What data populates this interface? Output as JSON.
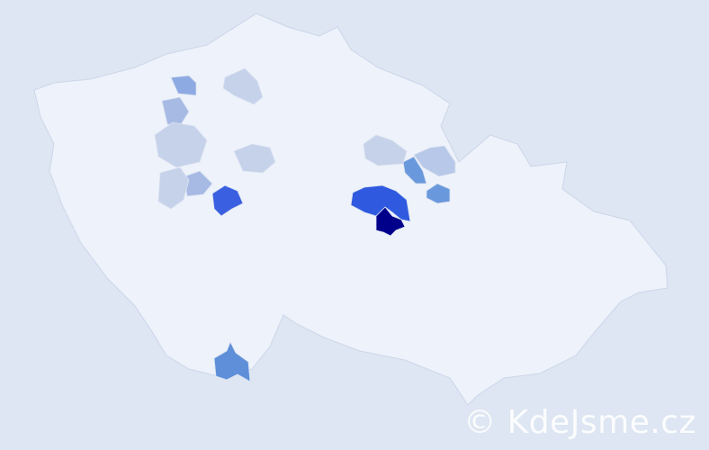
{
  "map": {
    "country_fill": "#eef2fa",
    "border_color": "#cdd6ea",
    "background": "#dde6f2",
    "regions": [
      {
        "level": "highest",
        "color": "#00008b"
      },
      {
        "level": "high",
        "color": "#2f5ae0"
      },
      {
        "level": "high",
        "color": "#3a5fe0"
      },
      {
        "level": "medium",
        "color": "#5e8fd8"
      },
      {
        "level": "medium",
        "color": "#6a98dc"
      },
      {
        "level": "medium",
        "color": "#6a98dc"
      },
      {
        "level": "low",
        "color": "#8eaae2"
      },
      {
        "level": "low",
        "color": "#a6bae4"
      },
      {
        "level": "low",
        "color": "#a6bae4"
      },
      {
        "level": "lowest",
        "color": "#c6d2ea"
      },
      {
        "level": "lowest",
        "color": "#c6d2ea"
      },
      {
        "level": "lowest",
        "color": "#c6d2ea"
      },
      {
        "level": "lowest",
        "color": "#c6d2ea"
      },
      {
        "level": "lowest",
        "color": "#b8c8e8"
      },
      {
        "level": "lowest",
        "color": "#c6d2ea"
      }
    ]
  },
  "watermark": "© KdeJsme.cz"
}
